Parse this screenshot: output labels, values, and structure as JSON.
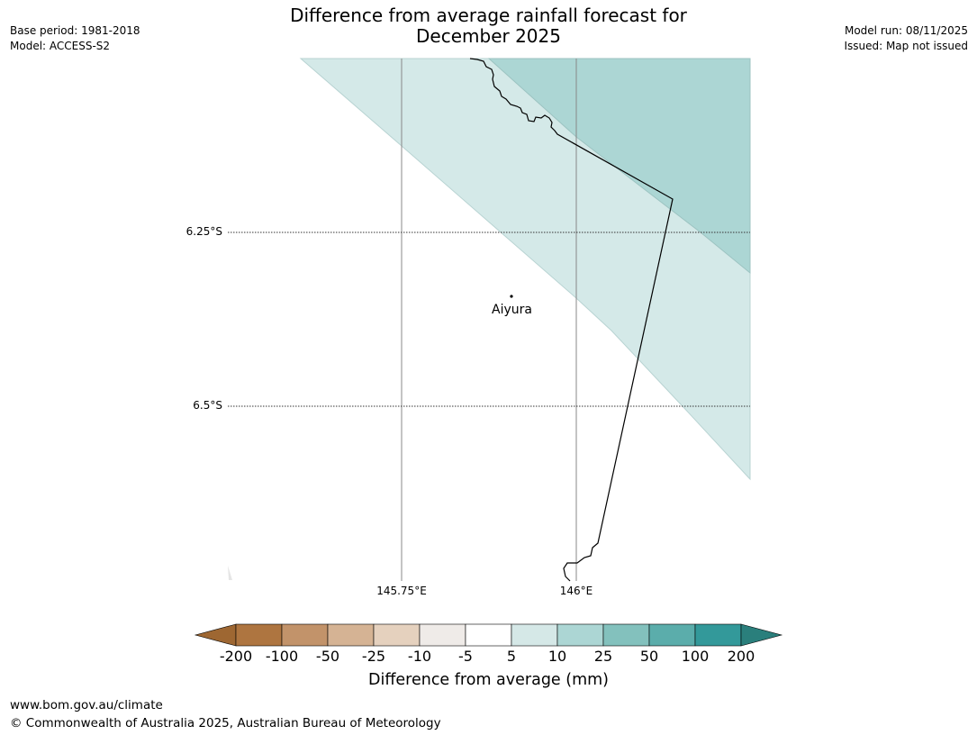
{
  "title_line1": "Difference from average rainfall forecast for",
  "title_line2": "December 2025",
  "meta_left": {
    "base_period": "Base period: 1981-2018",
    "model": "Model: ACCESS-S2"
  },
  "meta_right": {
    "model_run": "Model run: 08/11/2025",
    "issued": "Issued: Map not issued"
  },
  "map": {
    "latitude_labels": [
      "6.25°S",
      "6.5°S"
    ],
    "longitude_labels": [
      "145.75°E",
      "146°E"
    ],
    "place": {
      "name": "Aiyura"
    },
    "fill_colors": {
      "light": "#d4e9e8",
      "medium": "#acd6d4"
    }
  },
  "colorbar": {
    "title": "Difference from average (mm)",
    "tick_labels": [
      "-200",
      "-100",
      "-50",
      "-25",
      "-10",
      "-5",
      "5",
      "10",
      "25",
      "50",
      "100",
      "200"
    ],
    "colors": [
      "#9e6732",
      "#ae7540",
      "#c2936a",
      "#d5b394",
      "#e5d1be",
      "#efebe8",
      "#ffffff",
      "#d5e8e7",
      "#acd6d4",
      "#83c1bd",
      "#5badab",
      "#33999a",
      "#2a7f7c"
    ]
  },
  "footer": {
    "url": "www.bom.gov.au/climate",
    "copyright": "© Commonwealth of Australia 2025, Australian Bureau of Meteorology"
  }
}
